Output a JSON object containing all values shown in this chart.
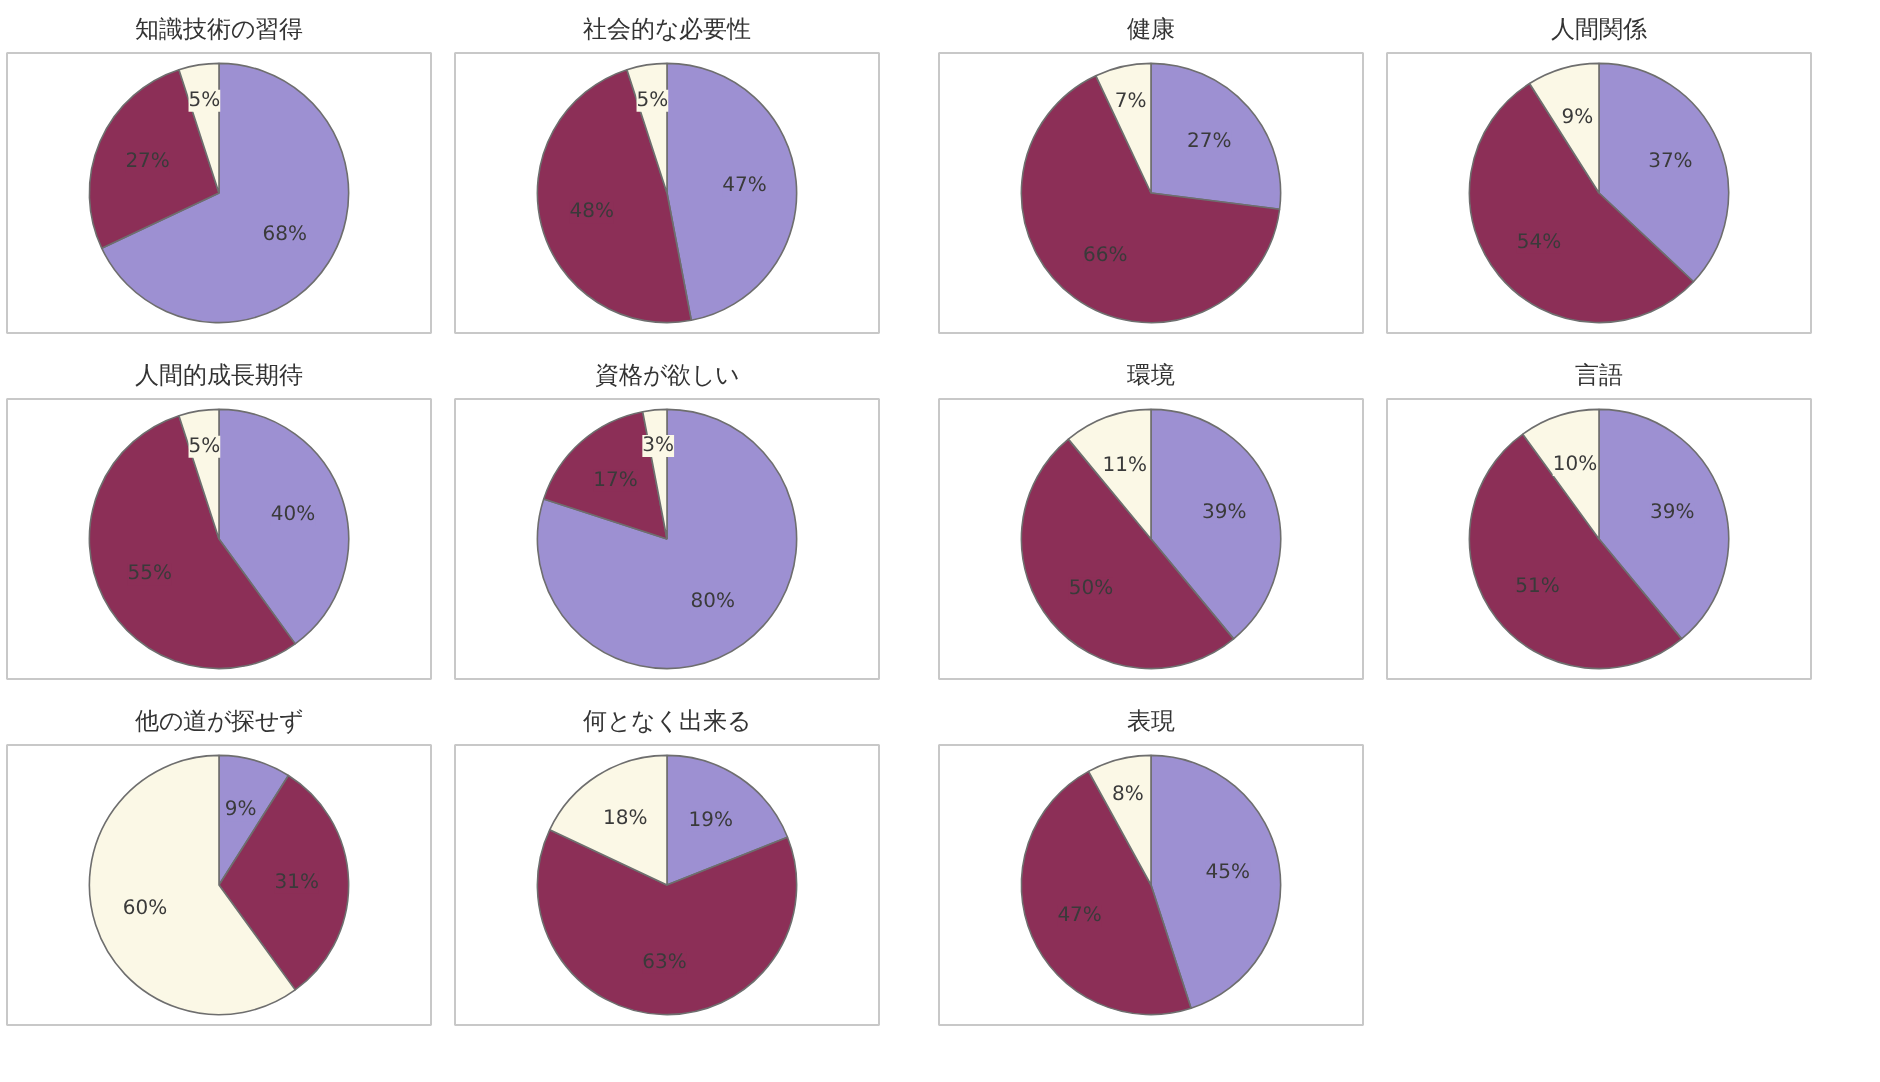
{
  "chart_data": [
    {
      "type": "pie",
      "title": "知識技術の習得",
      "categories": [
        null,
        null,
        null
      ],
      "values": [
        68,
        27,
        5
      ],
      "value_labels": [
        "68%",
        "27%",
        "5%"
      ],
      "colors": [
        "#9d90d2",
        "#8c2f57",
        "#fbf8e6"
      ]
    },
    {
      "type": "pie",
      "title": "社会的な必要性",
      "categories": [
        null,
        null,
        null
      ],
      "values": [
        47,
        48,
        5
      ],
      "value_labels": [
        "47%",
        "48%",
        "5%"
      ],
      "colors": [
        "#9d90d2",
        "#8c2f57",
        "#fbf8e6"
      ]
    },
    {
      "type": "pie",
      "title": "人間的成長期待",
      "categories": [
        null,
        null,
        null
      ],
      "values": [
        40,
        55,
        5
      ],
      "value_labels": [
        "40%",
        "55%",
        "5%"
      ],
      "colors": [
        "#9d90d2",
        "#8c2f57",
        "#fbf8e6"
      ]
    },
    {
      "type": "pie",
      "title": "資格が欲しい",
      "categories": [
        null,
        null,
        null
      ],
      "values": [
        80,
        17,
        3
      ],
      "value_labels": [
        "80%",
        "17%",
        "3%"
      ],
      "colors": [
        "#9d90d2",
        "#8c2f57",
        "#fbf8e6"
      ]
    },
    {
      "type": "pie",
      "title": "他の道が探せず",
      "categories": [
        null,
        null,
        null
      ],
      "values": [
        9,
        31,
        60
      ],
      "value_labels": [
        "9%",
        "31%",
        "60%"
      ],
      "colors": [
        "#9d90d2",
        "#8c2f57",
        "#fbf8e6"
      ]
    },
    {
      "type": "pie",
      "title": "何となく出来る",
      "categories": [
        null,
        null,
        null
      ],
      "values": [
        19,
        63,
        18
      ],
      "value_labels": [
        "19%",
        "63%",
        "18%"
      ],
      "colors": [
        "#9d90d2",
        "#8c2f57",
        "#fbf8e6"
      ]
    },
    {
      "type": "pie",
      "title": "健康",
      "categories": [
        null,
        null,
        null
      ],
      "values": [
        27,
        66,
        7
      ],
      "value_labels": [
        "27%",
        "66%",
        "7%"
      ],
      "colors": [
        "#9d90d2",
        "#8c2f57",
        "#fbf8e6"
      ]
    },
    {
      "type": "pie",
      "title": "人間関係",
      "categories": [
        null,
        null,
        null
      ],
      "values": [
        37,
        54,
        9
      ],
      "value_labels": [
        "37%",
        "54%",
        "9%"
      ],
      "colors": [
        "#9d90d2",
        "#8c2f57",
        "#fbf8e6"
      ]
    },
    {
      "type": "pie",
      "title": "環境",
      "categories": [
        null,
        null,
        null
      ],
      "values": [
        39,
        50,
        11
      ],
      "value_labels": [
        "39%",
        "50%",
        "11%"
      ],
      "colors": [
        "#9d90d2",
        "#8c2f57",
        "#fbf8e6"
      ]
    },
    {
      "type": "pie",
      "title": "言語",
      "categories": [
        null,
        null,
        null
      ],
      "values": [
        39,
        51,
        10
      ],
      "value_labels": [
        "39%",
        "51%",
        "10%"
      ],
      "colors": [
        "#9d90d2",
        "#8c2f57",
        "#fbf8e6"
      ]
    },
    {
      "type": "pie",
      "title": "表現",
      "categories": [
        null,
        null,
        null
      ],
      "values": [
        45,
        47,
        8
      ],
      "value_labels": [
        "45%",
        "47%",
        "8%"
      ],
      "colors": [
        "#9d90d2",
        "#8c2f57",
        "#fbf8e6"
      ]
    }
  ]
}
